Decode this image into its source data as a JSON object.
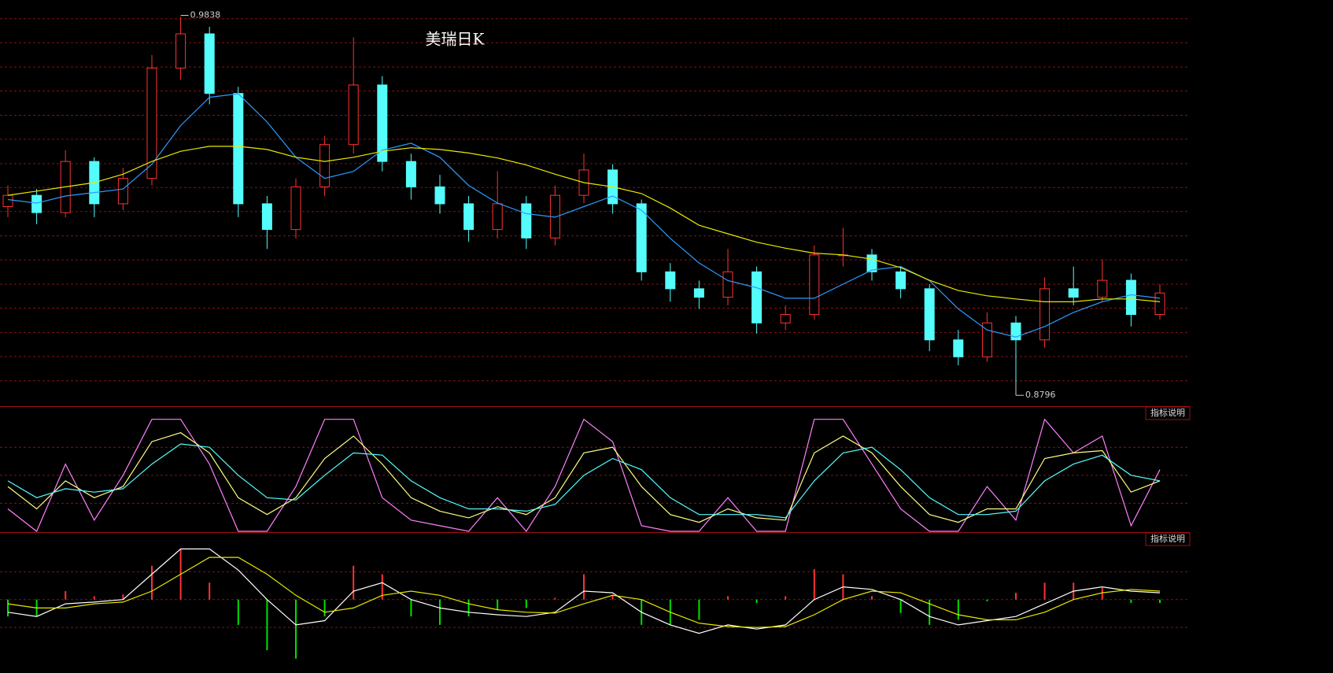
{
  "chart_data": [
    {
      "type": "candlestick",
      "title": "美瑞日K",
      "ylim": [
        0.8734,
        0.9886
      ],
      "ygrid": [
        0.9833,
        0.9765,
        0.9696,
        0.9628,
        0.9559,
        0.9491,
        0.9422,
        0.9354,
        0.9286,
        0.9217,
        0.9149,
        0.908,
        0.9012,
        0.8943,
        0.8875,
        0.8806
      ],
      "up_color": "#ff3232",
      "down_color": "#54fcfc",
      "open": [
        0.93,
        0.9332,
        0.9283,
        0.9428,
        0.9308,
        0.938,
        0.9693,
        0.979,
        0.9621,
        0.9308,
        0.9235,
        0.9356,
        0.9476,
        0.9645,
        0.9428,
        0.9356,
        0.9308,
        0.9235,
        0.9308,
        0.9211,
        0.9332,
        0.9404,
        0.9308,
        0.9115,
        0.9067,
        0.9043,
        0.9115,
        0.897,
        0.8994,
        0.9163,
        0.9163,
        0.9115,
        0.9067,
        0.8922,
        0.8874,
        0.897,
        0.8922,
        0.9067,
        0.9043,
        0.9091,
        0.8994
      ],
      "high": [
        0.936,
        0.935,
        0.946,
        0.944,
        0.941,
        0.973,
        0.9838,
        0.981,
        0.964,
        0.933,
        0.938,
        0.95,
        0.978,
        0.967,
        0.945,
        0.939,
        0.933,
        0.94,
        0.933,
        0.936,
        0.945,
        0.942,
        0.932,
        0.914,
        0.909,
        0.918,
        0.913,
        0.902,
        0.919,
        0.924,
        0.918,
        0.913,
        0.908,
        0.895,
        0.9,
        0.899,
        0.91,
        0.913,
        0.915,
        0.911,
        0.908
      ],
      "low": [
        0.927,
        0.925,
        0.927,
        0.927,
        0.929,
        0.936,
        0.966,
        0.959,
        0.927,
        0.918,
        0.921,
        0.933,
        0.945,
        0.94,
        0.932,
        0.928,
        0.92,
        0.921,
        0.918,
        0.919,
        0.931,
        0.928,
        0.909,
        0.903,
        0.901,
        0.902,
        0.894,
        0.895,
        0.898,
        0.913,
        0.909,
        0.904,
        0.889,
        0.885,
        0.886,
        0.8796,
        0.89,
        0.902,
        0.903,
        0.896,
        0.898
      ],
      "close": [
        0.9332,
        0.9283,
        0.9428,
        0.9308,
        0.938,
        0.9693,
        0.979,
        0.9621,
        0.9308,
        0.9235,
        0.9356,
        0.9476,
        0.9645,
        0.9428,
        0.9356,
        0.9308,
        0.9235,
        0.9308,
        0.9211,
        0.9332,
        0.9404,
        0.9308,
        0.9115,
        0.9067,
        0.9043,
        0.9115,
        0.897,
        0.8994,
        0.9163,
        0.9163,
        0.9115,
        0.9067,
        0.8922,
        0.8874,
        0.897,
        0.8922,
        0.9067,
        0.9043,
        0.9091,
        0.8994,
        0.9055
      ],
      "lines": [
        {
          "color": "#2a9bff",
          "values": [
            0.932,
            0.931,
            0.933,
            0.934,
            0.935,
            0.942,
            0.953,
            0.961,
            0.962,
            0.954,
            0.944,
            0.938,
            0.94,
            0.946,
            0.948,
            0.944,
            0.936,
            0.931,
            0.928,
            0.927,
            0.93,
            0.933,
            0.929,
            0.921,
            0.914,
            0.909,
            0.907,
            0.904,
            0.904,
            0.908,
            0.912,
            0.913,
            0.909,
            0.901,
            0.895,
            0.893,
            0.896,
            0.9,
            0.903,
            0.905,
            0.904
          ]
        },
        {
          "color": "#e8e800",
          "values": [
            0.9332,
            0.9344,
            0.9356,
            0.9368,
            0.9392,
            0.9428,
            0.9457,
            0.9471,
            0.9471,
            0.9462,
            0.944,
            0.9428,
            0.944,
            0.9457,
            0.9467,
            0.9462,
            0.9452,
            0.9438,
            0.9418,
            0.9392,
            0.9368,
            0.9356,
            0.9337,
            0.9296,
            0.9247,
            0.9223,
            0.9199,
            0.9182,
            0.9168,
            0.9163,
            0.9151,
            0.9127,
            0.9091,
            0.9062,
            0.9047,
            0.9038,
            0.903,
            0.903,
            0.9038,
            0.9038,
            0.903
          ]
        }
      ]
    },
    {
      "type": "line",
      "label": "指标说明",
      "ylim": [
        -0.7,
        111
      ],
      "ygrid": [
        25,
        50,
        75
      ],
      "series": [
        {
          "color": "#ff80ff",
          "values": [
            20,
            0,
            60,
            10,
            50,
            100,
            100,
            60,
            0,
            0,
            40,
            100,
            100,
            30,
            10,
            5,
            0,
            30,
            0,
            40,
            100,
            80,
            5,
            0,
            0,
            30,
            0,
            0,
            100,
            100,
            60,
            20,
            0,
            0,
            40,
            10,
            100,
            70,
            85,
            5,
            55
          ]
        },
        {
          "color": "#ffff80",
          "values": [
            40,
            20,
            45,
            30,
            40,
            80,
            88,
            70,
            30,
            15,
            30,
            65,
            85,
            60,
            30,
            18,
            12,
            22,
            15,
            30,
            70,
            75,
            40,
            15,
            8,
            20,
            12,
            10,
            70,
            85,
            70,
            40,
            15,
            8,
            20,
            20,
            65,
            70,
            72,
            35,
            45
          ]
        },
        {
          "color": "#54fcfc",
          "values": [
            45,
            30,
            38,
            35,
            38,
            60,
            78,
            75,
            50,
            30,
            28,
            50,
            70,
            68,
            45,
            30,
            20,
            20,
            18,
            24,
            50,
            65,
            55,
            30,
            15,
            15,
            15,
            12,
            45,
            70,
            75,
            55,
            30,
            15,
            15,
            18,
            45,
            60,
            68,
            50,
            45
          ]
        }
      ]
    },
    {
      "type": "macd",
      "label": "指标说明",
      "ylim": [
        -0.0087,
        0.0079
      ],
      "ygrid": [
        0.0033,
        0,
        -0.0033
      ],
      "bars": {
        "up_color": "#ff3232",
        "down_color": "#00e000",
        "values": [
          -0.002,
          -0.002,
          0.001,
          0.0004,
          0.0006,
          0.004,
          0.006,
          0.002,
          -0.003,
          -0.006,
          -0.007,
          -0.002,
          0.004,
          0.003,
          -0.002,
          -0.003,
          -0.002,
          -0.0012,
          -0.001,
          0.0002,
          0.003,
          0.0006,
          -0.003,
          -0.003,
          -0.0024,
          0.0004,
          -0.0004,
          0.0004,
          0.0036,
          0.003,
          0.0004,
          -0.0016,
          -0.003,
          -0.0024,
          -0.0002,
          0.0008,
          0.002,
          0.002,
          0.0014,
          -0.0004,
          -0.0004
        ]
      },
      "series": [
        {
          "color": "#ffffff",
          "values": [
            -0.0015,
            -0.002,
            -0.0005,
            -0.0003,
            0,
            0.003,
            0.006,
            0.006,
            0.0035,
            0,
            -0.003,
            -0.0025,
            0.001,
            0.002,
            0,
            -0.001,
            -0.0015,
            -0.0018,
            -0.002,
            -0.0015,
            0.001,
            0.0008,
            -0.0015,
            -0.003,
            -0.004,
            -0.003,
            -0.0035,
            -0.003,
            0,
            0.0015,
            0.0012,
            0,
            -0.002,
            -0.003,
            -0.0025,
            -0.002,
            -0.0005,
            0.001,
            0.0015,
            0.001,
            0.0008
          ]
        },
        {
          "color": "#e8e800",
          "values": [
            -0.0005,
            -0.001,
            -0.001,
            -0.0005,
            -0.0003,
            0.001,
            0.003,
            0.005,
            0.005,
            0.003,
            0.0005,
            -0.0015,
            -0.001,
            0.0005,
            0.001,
            0.0005,
            -0.0005,
            -0.0012,
            -0.0015,
            -0.0016,
            -0.0005,
            0.0005,
            0,
            -0.0015,
            -0.0028,
            -0.0032,
            -0.0033,
            -0.0032,
            -0.0018,
            0,
            0.001,
            0.0008,
            -0.0005,
            -0.0018,
            -0.0024,
            -0.0024,
            -0.0015,
            0,
            0.0008,
            0.0012,
            0.001
          ]
        }
      ]
    }
  ]
}
